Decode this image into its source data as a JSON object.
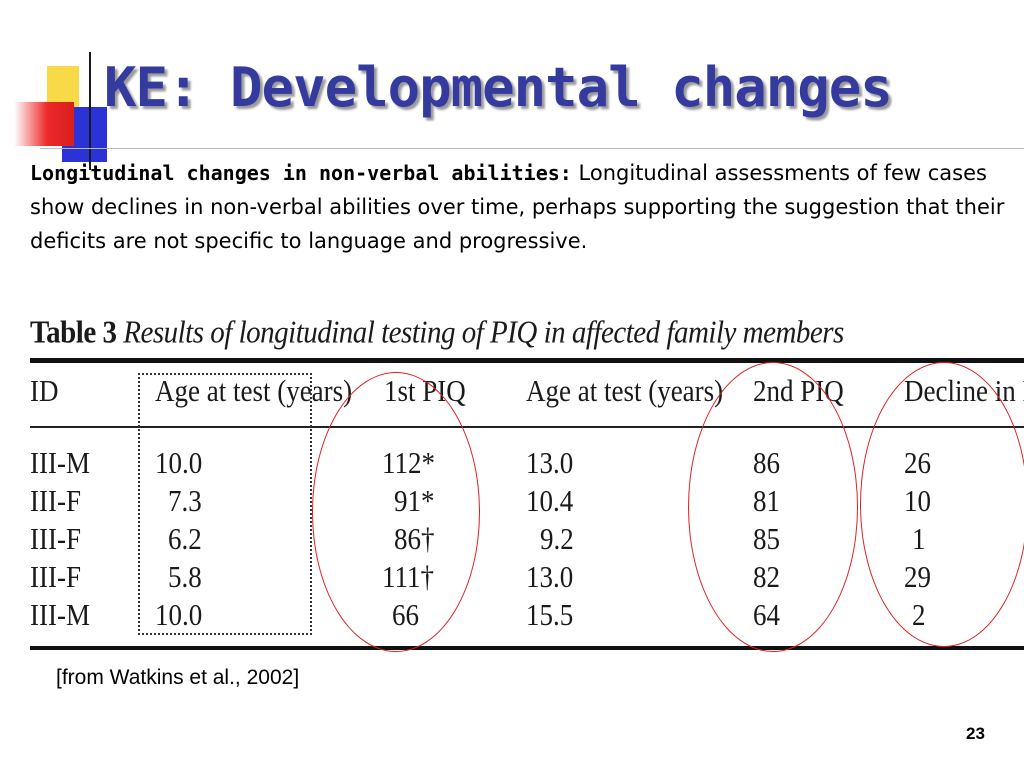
{
  "title": "KE: Developmental changes",
  "paragraph": {
    "lead": "Longitudinal changes in non-verbal abilities:",
    "text": " Longitudinal assessments of few cases show declines in non-verbal abilities over time, perhaps supporting the suggestion that their deficits are not specific to language and progressive."
  },
  "table": {
    "label": "Table 3",
    "caption": "Results of longitudinal testing of PIQ in affected family members",
    "headers": [
      "ID",
      "Age at test (years)",
      "1st PIQ",
      "Age at test (years)",
      "2nd PIQ",
      "Decline in PIQ"
    ],
    "rows": [
      [
        "III-M",
        "10.0",
        "112*",
        "13.0",
        "86",
        "26"
      ],
      [
        "III-F",
        "7.3",
        "91*",
        "10.4",
        "81",
        "10"
      ],
      [
        "III-F",
        "6.2",
        "86†",
        "9.2",
        "85",
        "1"
      ],
      [
        "III-F",
        "5.8",
        "111†",
        "13.0",
        "82",
        "29"
      ],
      [
        "III-M",
        "10.0",
        "66",
        "15.5",
        "64",
        "2"
      ]
    ]
  },
  "source": "[from Watkins et al., 2002]",
  "page_number": "23",
  "colors": {
    "title": "#343a9e",
    "circle": "#e02020",
    "deco_yellow": "#f8d948",
    "deco_blue": "#2c33d6",
    "deco_red": "#ee2a2a"
  }
}
